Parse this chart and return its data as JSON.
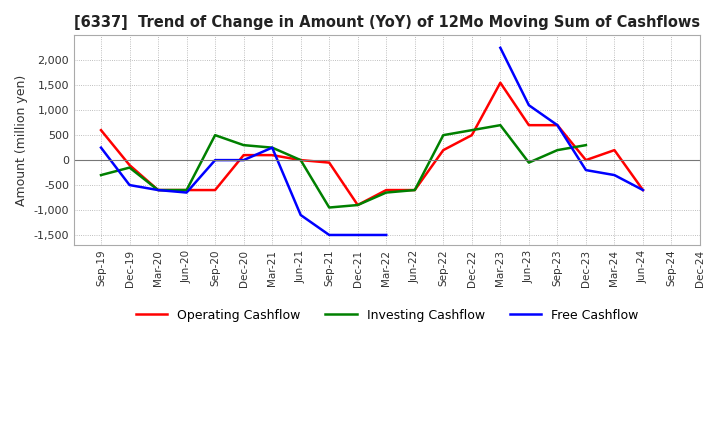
{
  "title": "[6337]  Trend of Change in Amount (YoY) of 12Mo Moving Sum of Cashflows",
  "ylabel": "Amount (million yen)",
  "ylim": [
    -1700,
    2500
  ],
  "yticks": [
    -1500,
    -1000,
    -500,
    0,
    500,
    1000,
    1500,
    2000
  ],
  "background_color": "#ffffff",
  "grid_color": "#aaaaaa",
  "x_labels": [
    "Sep-19",
    "Dec-19",
    "Mar-20",
    "Jun-20",
    "Sep-20",
    "Dec-20",
    "Mar-21",
    "Jun-21",
    "Sep-21",
    "Dec-21",
    "Mar-22",
    "Jun-22",
    "Sep-22",
    "Dec-22",
    "Mar-23",
    "Jun-23",
    "Sep-23",
    "Dec-23",
    "Mar-24",
    "Jun-24",
    "Sep-24",
    "Dec-24"
  ],
  "operating_cashflow": [
    600,
    -100,
    -600,
    -600,
    -600,
    100,
    100,
    0,
    -50,
    -900,
    -600,
    -600,
    200,
    500,
    1550,
    700,
    700,
    0,
    200,
    -600,
    null,
    null
  ],
  "investing_cashflow": [
    -300,
    -150,
    -600,
    -600,
    500,
    300,
    250,
    0,
    -950,
    -900,
    -650,
    -600,
    500,
    600,
    700,
    -50,
    200,
    300,
    null,
    null,
    null,
    null
  ],
  "free_cashflow": [
    250,
    -500,
    -600,
    -650,
    0,
    0,
    250,
    -1100,
    -1500,
    -1500,
    -1500,
    null,
    null,
    null,
    2250,
    1100,
    700,
    -200,
    -300,
    -600,
    null,
    null
  ],
  "operating_color": "#ff0000",
  "investing_color": "#008000",
  "free_color": "#0000ff",
  "line_width": 1.8
}
